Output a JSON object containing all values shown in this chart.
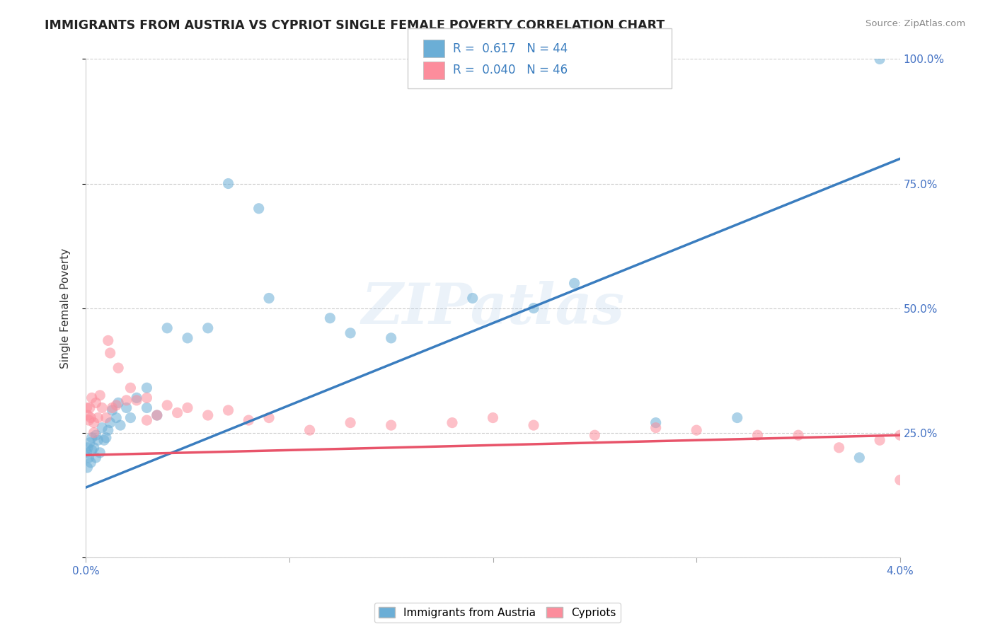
{
  "title": "IMMIGRANTS FROM AUSTRIA VS CYPRIOT SINGLE FEMALE POVERTY CORRELATION CHART",
  "source": "Source: ZipAtlas.com",
  "ylabel": "Single Female Poverty",
  "x_min": 0.0,
  "x_max": 0.04,
  "y_min": 0.0,
  "y_max": 1.0,
  "x_ticks": [
    0.0,
    0.01,
    0.02,
    0.03,
    0.04
  ],
  "x_tick_labels": [
    "0.0%",
    "",
    "",
    "",
    "4.0%"
  ],
  "y_ticks": [
    0.0,
    0.25,
    0.5,
    0.75,
    1.0
  ],
  "y_tick_labels": [
    "",
    "25.0%",
    "50.0%",
    "75.0%",
    "100.0%"
  ],
  "blue_color": "#6baed6",
  "pink_color": "#fc8d9c",
  "blue_line_color": "#3a7dbf",
  "pink_line_color": "#e8546a",
  "blue_R": 0.617,
  "blue_N": 44,
  "pink_R": 0.04,
  "pink_N": 46,
  "legend_label_blue": "Immigrants from Austria",
  "legend_label_pink": "Cypriots",
  "watermark": "ZIPatlas",
  "blue_line_x0": 0.0,
  "blue_line_y0": 0.14,
  "blue_line_x1": 0.04,
  "blue_line_y1": 0.8,
  "pink_line_x0": 0.0,
  "pink_line_y0": 0.205,
  "pink_line_x1": 0.04,
  "pink_line_y1": 0.245,
  "blue_scatter_x": [
    5e-05,
    8e-05,
    0.0001,
    0.00015,
    0.0002,
    0.00025,
    0.0003,
    0.0003,
    0.0004,
    0.0005,
    0.0005,
    0.0006,
    0.0007,
    0.0008,
    0.0009,
    0.001,
    0.0011,
    0.0012,
    0.0013,
    0.0015,
    0.0016,
    0.0017,
    0.002,
    0.0022,
    0.0025,
    0.003,
    0.003,
    0.0035,
    0.004,
    0.005,
    0.006,
    0.007,
    0.0085,
    0.009,
    0.012,
    0.013,
    0.015,
    0.019,
    0.022,
    0.024,
    0.028,
    0.032,
    0.038,
    0.039
  ],
  "blue_scatter_y": [
    0.21,
    0.18,
    0.22,
    0.2,
    0.23,
    0.19,
    0.215,
    0.24,
    0.22,
    0.2,
    0.245,
    0.235,
    0.21,
    0.26,
    0.235,
    0.24,
    0.255,
    0.27,
    0.295,
    0.28,
    0.31,
    0.265,
    0.3,
    0.28,
    0.32,
    0.3,
    0.34,
    0.285,
    0.46,
    0.44,
    0.46,
    0.75,
    0.7,
    0.52,
    0.48,
    0.45,
    0.44,
    0.52,
    0.5,
    0.55,
    0.27,
    0.28,
    0.2,
    1.0
  ],
  "pink_scatter_x": [
    5e-05,
    0.0001,
    0.00015,
    0.0002,
    0.00025,
    0.0003,
    0.0004,
    0.0004,
    0.0005,
    0.0006,
    0.0007,
    0.0008,
    0.001,
    0.0011,
    0.0012,
    0.0013,
    0.0015,
    0.0016,
    0.002,
    0.0022,
    0.0025,
    0.003,
    0.003,
    0.0035,
    0.004,
    0.0045,
    0.005,
    0.006,
    0.007,
    0.008,
    0.009,
    0.011,
    0.013,
    0.015,
    0.018,
    0.02,
    0.022,
    0.025,
    0.028,
    0.03,
    0.033,
    0.035,
    0.037,
    0.039,
    0.04,
    0.04
  ],
  "pink_scatter_y": [
    0.3,
    0.285,
    0.275,
    0.3,
    0.28,
    0.32,
    0.27,
    0.25,
    0.31,
    0.28,
    0.325,
    0.3,
    0.28,
    0.435,
    0.41,
    0.3,
    0.305,
    0.38,
    0.315,
    0.34,
    0.315,
    0.32,
    0.275,
    0.285,
    0.305,
    0.29,
    0.3,
    0.285,
    0.295,
    0.275,
    0.28,
    0.255,
    0.27,
    0.265,
    0.27,
    0.28,
    0.265,
    0.245,
    0.26,
    0.255,
    0.245,
    0.245,
    0.22,
    0.235,
    0.155,
    0.245
  ]
}
